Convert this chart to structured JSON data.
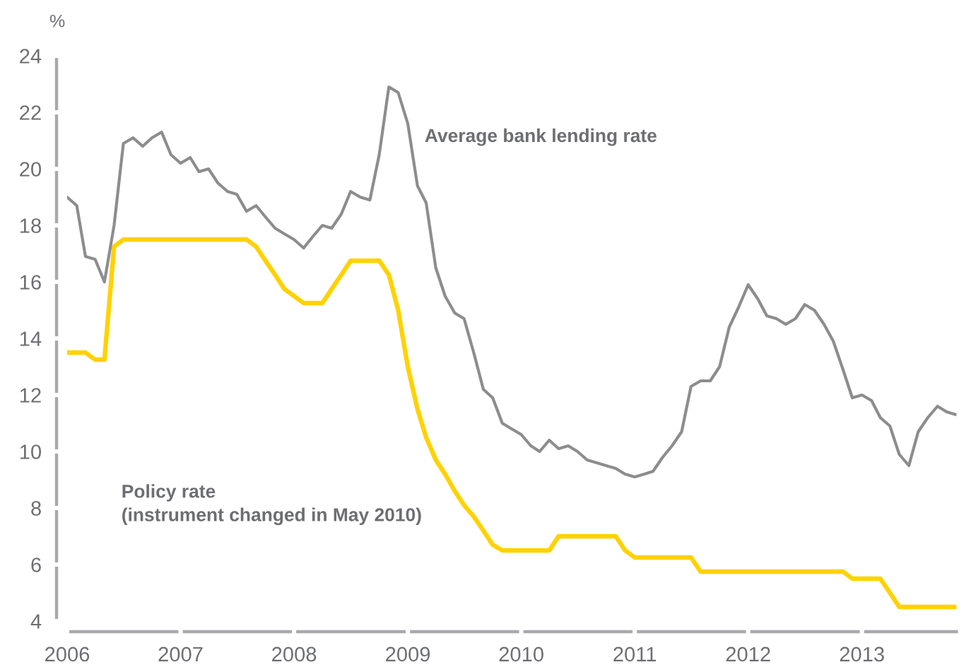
{
  "chart_data": {
    "type": "line",
    "ylabel": "%",
    "x": [
      "2006-01",
      "2006-02",
      "2006-03",
      "2006-04",
      "2006-05",
      "2006-06",
      "2006-07",
      "2006-08",
      "2006-09",
      "2006-10",
      "2006-11",
      "2006-12",
      "2007-01",
      "2007-02",
      "2007-03",
      "2007-04",
      "2007-05",
      "2007-06",
      "2007-07",
      "2007-08",
      "2007-09",
      "2007-10",
      "2007-11",
      "2007-12",
      "2008-01",
      "2008-02",
      "2008-03",
      "2008-04",
      "2008-05",
      "2008-06",
      "2008-07",
      "2008-08",
      "2008-09",
      "2008-10",
      "2008-11",
      "2008-12",
      "2009-01",
      "2009-02",
      "2009-03",
      "2009-04",
      "2009-05",
      "2009-06",
      "2009-07",
      "2009-08",
      "2009-09",
      "2009-10",
      "2009-11",
      "2009-12",
      "2010-01",
      "2010-02",
      "2010-03",
      "2010-04",
      "2010-05",
      "2010-06",
      "2010-07",
      "2010-08",
      "2010-09",
      "2010-10",
      "2010-11",
      "2010-12",
      "2011-01",
      "2011-02",
      "2011-03",
      "2011-04",
      "2011-05",
      "2011-06",
      "2011-07",
      "2011-08",
      "2011-09",
      "2011-10",
      "2011-11",
      "2011-12",
      "2012-01",
      "2012-02",
      "2012-03",
      "2012-04",
      "2012-05",
      "2012-06",
      "2012-07",
      "2012-08",
      "2012-09",
      "2012-10",
      "2012-11",
      "2012-12",
      "2013-01",
      "2013-02",
      "2013-03",
      "2013-04",
      "2013-05",
      "2013-06",
      "2013-07",
      "2013-08",
      "2013-09",
      "2013-10",
      "2013-11"
    ],
    "xlim": [
      "2006-01",
      "2013-11"
    ],
    "xticks": [
      "2006",
      "2007",
      "2008",
      "2009",
      "2010",
      "2011",
      "2012",
      "2013"
    ],
    "ylim": [
      4,
      24
    ],
    "yticks": [
      4,
      6,
      8,
      10,
      12,
      14,
      16,
      18,
      20,
      22,
      24
    ],
    "series": [
      {
        "name": "Average bank lending rate",
        "color": "#8d8d8f",
        "values": [
          19.0,
          18.7,
          16.9,
          16.8,
          16.0,
          18.0,
          20.9,
          21.1,
          20.8,
          21.1,
          21.3,
          20.5,
          20.2,
          20.4,
          19.9,
          20.0,
          19.5,
          19.2,
          19.1,
          18.5,
          18.7,
          18.3,
          17.9,
          17.7,
          17.5,
          17.2,
          17.6,
          18.0,
          17.9,
          18.4,
          19.2,
          19.0,
          18.9,
          20.5,
          22.9,
          22.7,
          21.6,
          19.4,
          18.8,
          16.5,
          15.5,
          14.9,
          14.7,
          13.5,
          12.2,
          11.9,
          11.0,
          10.8,
          10.6,
          10.2,
          10.0,
          10.4,
          10.1,
          10.2,
          10.0,
          9.7,
          9.6,
          9.5,
          9.4,
          9.2,
          9.1,
          9.2,
          9.3,
          9.8,
          10.2,
          10.7,
          12.3,
          12.5,
          12.5,
          13.0,
          14.4,
          15.1,
          15.9,
          15.4,
          14.8,
          14.7,
          14.5,
          14.7,
          15.2,
          15.0,
          14.5,
          13.9,
          12.9,
          11.9,
          12.0,
          11.8,
          11.2,
          10.9,
          9.9,
          9.5,
          10.7,
          11.2,
          11.6,
          11.4,
          11.3
        ]
      },
      {
        "name": "Policy rate\n(instrument changed in May 2010)",
        "color": "#ffd200",
        "values": [
          13.5,
          13.5,
          13.5,
          13.25,
          13.25,
          17.25,
          17.5,
          17.5,
          17.5,
          17.5,
          17.5,
          17.5,
          17.5,
          17.5,
          17.5,
          17.5,
          17.5,
          17.5,
          17.5,
          17.5,
          17.25,
          16.75,
          16.25,
          15.75,
          15.5,
          15.25,
          15.25,
          15.25,
          15.75,
          16.25,
          16.75,
          16.75,
          16.75,
          16.75,
          16.25,
          15.0,
          13.0,
          11.5,
          10.5,
          9.7,
          9.2,
          8.6,
          8.1,
          7.7,
          7.2,
          6.7,
          6.5,
          6.5,
          6.5,
          6.5,
          6.5,
          6.5,
          7.0,
          7.0,
          7.0,
          7.0,
          7.0,
          7.0,
          7.0,
          6.5,
          6.25,
          6.25,
          6.25,
          6.25,
          6.25,
          6.25,
          6.25,
          5.75,
          5.75,
          5.75,
          5.75,
          5.75,
          5.75,
          5.75,
          5.75,
          5.75,
          5.75,
          5.75,
          5.75,
          5.75,
          5.75,
          5.75,
          5.75,
          5.5,
          5.5,
          5.5,
          5.5,
          5.0,
          4.5,
          4.5,
          4.5,
          4.5,
          4.5,
          4.5,
          4.5
        ]
      }
    ]
  }
}
